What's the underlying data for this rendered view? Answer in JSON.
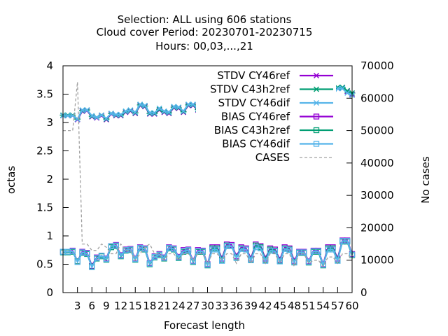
{
  "chart_data": {
    "type": "line",
    "title_lines": [
      "Selection: ALL using   606 stations",
      "Cloud cover   Period: 20230701-20230715",
      "Hours:  00,03,...,21"
    ],
    "xlabel": "Forecast length",
    "ylabel": "octas",
    "y2label": "No cases",
    "xlim": [
      0,
      60
    ],
    "ylim": [
      0,
      4
    ],
    "y2lim": [
      0,
      70000
    ],
    "xticks": [
      "3",
      "6",
      "9",
      "12",
      "15",
      "18",
      "21",
      "24",
      "27",
      "30",
      "33",
      "36",
      "39",
      "42",
      "45",
      "48",
      "51",
      "54",
      "57",
      "60"
    ],
    "yticks": [
      "0",
      "0.5",
      "1",
      "1.5",
      "2",
      "2.5",
      "3",
      "3.5",
      "4"
    ],
    "y2ticks": [
      "0",
      "10000",
      "20000",
      "30000",
      "40000",
      "50000",
      "60000",
      "70000"
    ],
    "legend_position": "top-right",
    "x": [
      0,
      1,
      2,
      3,
      4,
      5,
      6,
      7,
      8,
      9,
      10,
      11,
      12,
      13,
      14,
      15,
      16,
      17,
      18,
      19,
      20,
      21,
      22,
      23,
      24,
      25,
      26,
      27,
      28,
      29,
      30,
      31,
      32,
      33,
      34,
      35,
      36,
      37,
      38,
      39,
      40,
      41,
      42,
      43,
      44,
      45,
      46,
      47,
      48,
      49,
      50,
      51,
      52,
      53,
      54,
      55,
      56,
      57,
      58,
      59,
      60
    ],
    "series": [
      {
        "name": "STDV CY46ref",
        "color": "#9400d3",
        "marker": "x",
        "axis": "y1",
        "values": [
          3.12,
          3.12,
          3.12,
          3.05,
          3.2,
          3.21,
          3.1,
          3.08,
          3.12,
          3.05,
          3.15,
          3.12,
          3.12,
          3.18,
          3.2,
          3.16,
          3.3,
          3.28,
          3.15,
          3.15,
          3.22,
          3.18,
          3.16,
          3.26,
          3.25,
          3.18,
          3.3,
          3.3,
          3.22,
          3.38,
          3.38,
          3.3,
          3.34,
          3.4,
          3.32,
          3.32,
          3.42,
          3.42,
          3.34,
          3.43,
          3.43,
          3.35,
          3.45,
          3.44,
          3.38,
          3.46,
          3.47,
          3.4,
          3.48,
          3.48,
          3.42,
          3.5,
          3.5,
          3.48,
          3.55,
          3.56,
          3.5,
          3.6,
          3.61,
          3.55,
          3.5
        ]
      },
      {
        "name": "STDV C43h2ref",
        "color": "#009e73",
        "marker": "*",
        "axis": "y1",
        "values": [
          3.13,
          3.13,
          3.13,
          3.06,
          3.21,
          3.22,
          3.11,
          3.09,
          3.13,
          3.06,
          3.16,
          3.13,
          3.13,
          3.19,
          3.21,
          3.17,
          3.31,
          3.29,
          3.16,
          3.16,
          3.23,
          3.19,
          3.17,
          3.27,
          3.26,
          3.19,
          3.31,
          3.31,
          3.23,
          3.39,
          3.39,
          3.31,
          3.35,
          3.41,
          3.33,
          3.33,
          3.43,
          3.43,
          3.35,
          3.44,
          3.44,
          3.36,
          3.46,
          3.45,
          3.39,
          3.47,
          3.48,
          3.41,
          3.49,
          3.49,
          3.43,
          3.52,
          3.52,
          3.49,
          3.57,
          3.58,
          3.52,
          3.62,
          3.62,
          3.56,
          3.52
        ]
      },
      {
        "name": "STDV CY46dif",
        "color": "#56b4e9",
        "marker": "x",
        "axis": "y1",
        "values": [
          3.12,
          3.12,
          3.12,
          3.06,
          3.22,
          3.22,
          3.12,
          3.09,
          3.13,
          3.07,
          3.16,
          3.14,
          3.14,
          3.2,
          3.22,
          3.18,
          3.32,
          3.3,
          3.17,
          3.17,
          3.25,
          3.2,
          3.18,
          3.28,
          3.27,
          3.2,
          3.32,
          3.32,
          3.24,
          3.38,
          3.38,
          3.3,
          3.34,
          3.4,
          3.32,
          3.32,
          3.42,
          3.42,
          3.34,
          3.42,
          3.42,
          3.34,
          3.44,
          3.44,
          3.38,
          3.46,
          3.46,
          3.38,
          3.44,
          3.44,
          3.36,
          3.48,
          3.48,
          3.44,
          3.55,
          3.55,
          3.48,
          3.6,
          3.6,
          3.52,
          3.48
        ]
      },
      {
        "name": "BIAS CY46ref",
        "color": "#9400d3",
        "marker": "square",
        "axis": "y1",
        "values": [
          0.72,
          0.72,
          0.74,
          0.55,
          0.72,
          0.7,
          0.47,
          0.62,
          0.65,
          0.6,
          0.82,
          0.84,
          0.66,
          0.76,
          0.77,
          0.6,
          0.8,
          0.78,
          0.52,
          0.64,
          0.68,
          0.62,
          0.8,
          0.78,
          0.63,
          0.75,
          0.76,
          0.56,
          0.75,
          0.74,
          0.5,
          0.8,
          0.8,
          0.6,
          0.85,
          0.84,
          0.64,
          0.8,
          0.78,
          0.6,
          0.85,
          0.82,
          0.6,
          0.78,
          0.76,
          0.58,
          0.8,
          0.78,
          0.56,
          0.72,
          0.72,
          0.55,
          0.74,
          0.74,
          0.5,
          0.8,
          0.8,
          0.6,
          0.92,
          0.92,
          0.68
        ]
      },
      {
        "name": "BIAS C43h2ref",
        "color": "#009e73",
        "marker": "square",
        "axis": "y1",
        "values": [
          0.71,
          0.71,
          0.72,
          0.55,
          0.7,
          0.68,
          0.46,
          0.6,
          0.64,
          0.58,
          0.8,
          0.82,
          0.64,
          0.74,
          0.75,
          0.58,
          0.78,
          0.76,
          0.5,
          0.62,
          0.66,
          0.6,
          0.78,
          0.76,
          0.61,
          0.72,
          0.74,
          0.54,
          0.72,
          0.72,
          0.48,
          0.78,
          0.78,
          0.58,
          0.83,
          0.82,
          0.62,
          0.78,
          0.76,
          0.58,
          0.83,
          0.8,
          0.58,
          0.76,
          0.74,
          0.56,
          0.78,
          0.76,
          0.54,
          0.7,
          0.7,
          0.53,
          0.72,
          0.72,
          0.48,
          0.78,
          0.78,
          0.58,
          0.9,
          0.9,
          0.66
        ]
      },
      {
        "name": "BIAS CY46dif",
        "color": "#56b4e9",
        "marker": "square",
        "axis": "y1",
        "values": [
          0.72,
          0.72,
          0.73,
          0.54,
          0.71,
          0.69,
          0.45,
          0.61,
          0.65,
          0.59,
          0.82,
          0.83,
          0.65,
          0.75,
          0.76,
          0.59,
          0.79,
          0.77,
          0.51,
          0.63,
          0.67,
          0.61,
          0.79,
          0.77,
          0.62,
          0.73,
          0.75,
          0.55,
          0.73,
          0.73,
          0.49,
          0.76,
          0.76,
          0.56,
          0.82,
          0.82,
          0.61,
          0.77,
          0.76,
          0.57,
          0.8,
          0.78,
          0.56,
          0.74,
          0.73,
          0.55,
          0.77,
          0.75,
          0.53,
          0.71,
          0.71,
          0.54,
          0.73,
          0.73,
          0.49,
          0.76,
          0.76,
          0.56,
          0.91,
          0.91,
          0.67
        ]
      },
      {
        "name": "CASES",
        "color": "#a0a0a0",
        "marker": "none",
        "dashed": true,
        "axis": "y2",
        "values": [
          50000,
          50000,
          50000,
          65000,
          15000,
          15000,
          13000,
          13000,
          15000,
          14000,
          12000,
          12000,
          15000,
          13000,
          13000,
          10000,
          12000,
          14000,
          15000,
          12000,
          12000,
          10000,
          12000,
          12000,
          10000,
          12000,
          12000,
          10000,
          12000,
          12000,
          9000,
          12000,
          12000,
          10000,
          12000,
          12000,
          9000,
          12000,
          12000,
          9000,
          12000,
          12000,
          9000,
          12000,
          12000,
          9000,
          12000,
          12000,
          8000,
          12000,
          12000,
          9000,
          10000,
          10000,
          8000,
          11000,
          11000,
          9000,
          12000,
          12000,
          10000
        ]
      }
    ]
  }
}
